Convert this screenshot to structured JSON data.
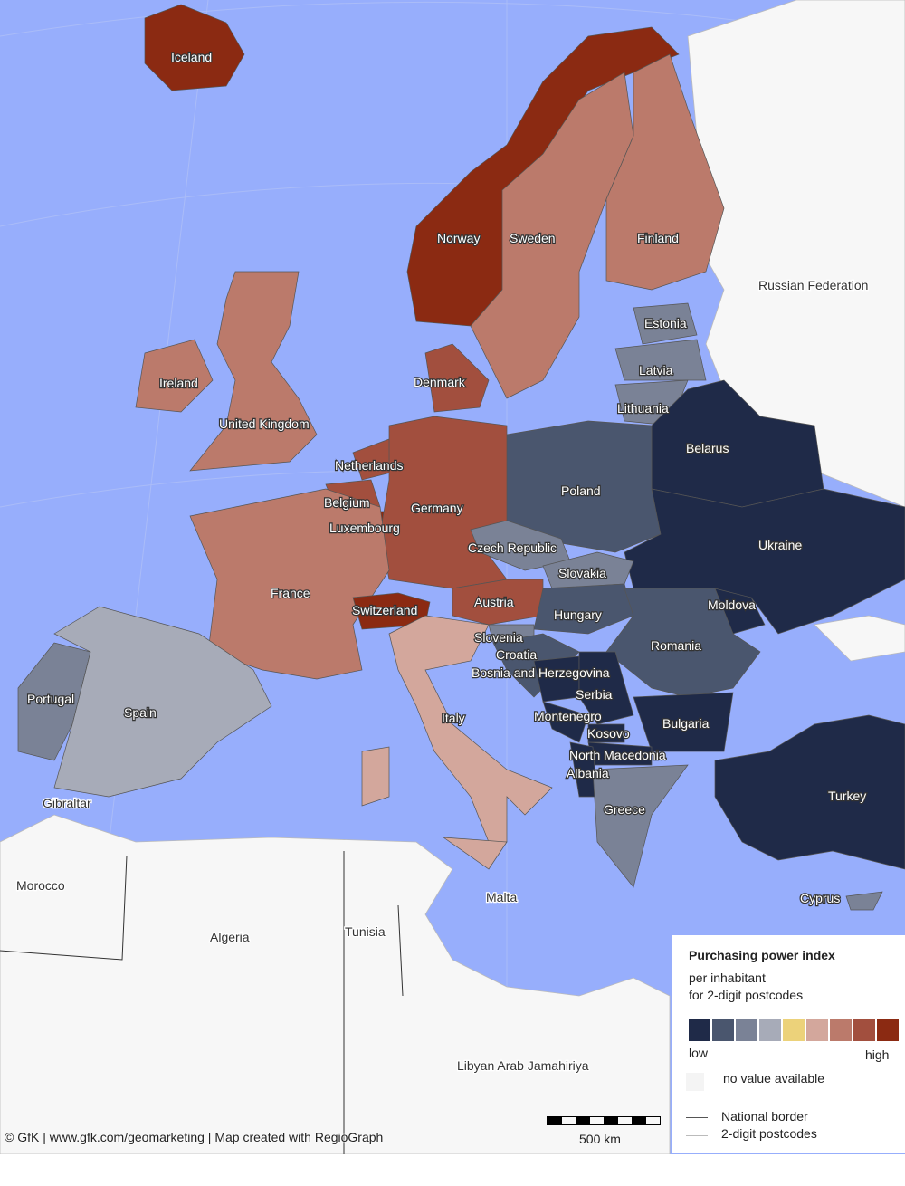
{
  "colors": {
    "sea": "#97aefc",
    "no_data_land": "#f7f7f7",
    "classes": [
      "#1f2a48",
      "#4a566e",
      "#7a8296",
      "#a7abb8",
      "#ecd27a",
      "#d3a79c",
      "#bb7a6b",
      "#a24f3e",
      "#8b2a12"
    ]
  },
  "countries": [
    {
      "name": "Iceland",
      "class": 9
    },
    {
      "name": "Norway",
      "class": 9
    },
    {
      "name": "Sweden",
      "class": 7
    },
    {
      "name": "Finland",
      "class": 7
    },
    {
      "name": "Russian Federation",
      "class": 0
    },
    {
      "name": "Estonia",
      "class": 3
    },
    {
      "name": "Latvia",
      "class": 3
    },
    {
      "name": "Lithuania",
      "class": 3
    },
    {
      "name": "Denmark",
      "class": 8
    },
    {
      "name": "Ireland",
      "class": 7
    },
    {
      "name": "United Kingdom",
      "class": 7
    },
    {
      "name": "Belarus",
      "class": 1
    },
    {
      "name": "Netherlands",
      "class": 8
    },
    {
      "name": "Poland",
      "class": 2
    },
    {
      "name": "Belgium",
      "class": 8
    },
    {
      "name": "Germany",
      "class": 8
    },
    {
      "name": "Luxembourg",
      "class": 9
    },
    {
      "name": "Czech Republic",
      "class": 3
    },
    {
      "name": "Ukraine",
      "class": 1
    },
    {
      "name": "Slovakia",
      "class": 3
    },
    {
      "name": "France",
      "class": 7
    },
    {
      "name": "Austria",
      "class": 8
    },
    {
      "name": "Switzerland",
      "class": 9
    },
    {
      "name": "Moldova",
      "class": 1
    },
    {
      "name": "Hungary",
      "class": 2
    },
    {
      "name": "Slovenia",
      "class": 3
    },
    {
      "name": "Romania",
      "class": 2
    },
    {
      "name": "Croatia",
      "class": 2
    },
    {
      "name": "Bosnia and Herzegovina",
      "class": 1
    },
    {
      "name": "Serbia",
      "class": 1
    },
    {
      "name": "Portugal",
      "class": 3
    },
    {
      "name": "Spain",
      "class": 4
    },
    {
      "name": "Italy",
      "class": 6
    },
    {
      "name": "Montenegro",
      "class": 1
    },
    {
      "name": "Bulgaria",
      "class": 1
    },
    {
      "name": "Kosovo",
      "class": 1
    },
    {
      "name": "North Macedonia",
      "class": 1
    },
    {
      "name": "Albania",
      "class": 1
    },
    {
      "name": "Gibraltar",
      "class": 0
    },
    {
      "name": "Greece",
      "class": 3
    },
    {
      "name": "Turkey",
      "class": 1
    },
    {
      "name": "Morocco",
      "class": 0
    },
    {
      "name": "Malta",
      "class": 0
    },
    {
      "name": "Cyprus",
      "class": 3
    },
    {
      "name": "Algeria",
      "class": 0
    },
    {
      "name": "Tunisia",
      "class": 0
    },
    {
      "name": "Libyan Arab Jamahiriya",
      "class": 0
    }
  ],
  "legend": {
    "title": "Purchasing power index",
    "subtitle_1": "per inhabitant",
    "subtitle_2": "for 2-digit postcodes",
    "low": "low",
    "high": "high",
    "no_value": "no value available",
    "national_border": "National border",
    "postcodes": "2-digit postcodes"
  },
  "scale_bar": {
    "label": "500 km"
  },
  "credit": "© GfK | www.gfk.com/geomarketing | Map created with RegioGraph"
}
